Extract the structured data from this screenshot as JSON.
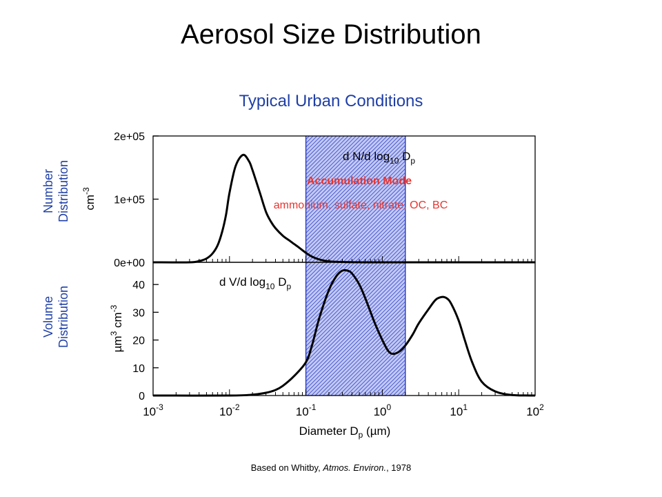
{
  "slide": {
    "title": "Aerosol Size Distribution",
    "subtitle": "Typical Urban Conditions",
    "number_label": [
      "Number",
      "Distribution"
    ],
    "volume_label": [
      "Volume",
      "Distribution"
    ],
    "citation_prefix": "Based on Whitby, ",
    "citation_journal": "Atmos. Environ.",
    "citation_suffix": ",  1978"
  },
  "colors": {
    "accent_blue": "#1f3fa6",
    "band_blue": "#2a3fd0",
    "annotation_red": "#e8332e",
    "curve": "#000000"
  },
  "chart_data": [
    {
      "type": "line",
      "panel": "number",
      "x_scale": "log",
      "xlim": [
        0.001,
        100
      ],
      "ylim": [
        0,
        200000
      ],
      "ylabel": "cm-3",
      "yticks": [
        0,
        100000,
        200000
      ],
      "ytick_labels": [
        "0e+00",
        "1e+05",
        "2e+05"
      ],
      "annotation": "d N/d log10 Dp",
      "shaded_band": {
        "from": 0.1,
        "to": 2,
        "label": "Accumulation Mode",
        "sublabel": "ammonium, sulfate, nitrate, OC, BC"
      },
      "series": [
        {
          "x": [
            0.001,
            0.003,
            0.004,
            0.005,
            0.006,
            0.007,
            0.008,
            0.009,
            0.01,
            0.012,
            0.015,
            0.018,
            0.02,
            0.025,
            0.03,
            0.035,
            0.04,
            0.05,
            0.06,
            0.07,
            0.08,
            0.1,
            0.12,
            0.15,
            0.2,
            0.3,
            0.5,
            1,
            100
          ],
          "y": [
            0,
            0,
            2000,
            6000,
            14000,
            27000,
            48000,
            75000,
            110000,
            152000,
            170000,
            160000,
            146000,
            110000,
            80000,
            64000,
            54000,
            42000,
            35000,
            29000,
            24000,
            15000,
            9000,
            4500,
            1500,
            500,
            100,
            0,
            0
          ]
        }
      ]
    },
    {
      "type": "line",
      "panel": "volume",
      "x_scale": "log",
      "xlim": [
        0.001,
        100
      ],
      "ylim": [
        0,
        48
      ],
      "ylabel": "µm3 cm-3",
      "xlabel": "Diameter Dp (µm)",
      "yticks": [
        0,
        10,
        20,
        30,
        40
      ],
      "xtick_exponents": [
        "-3",
        "-2",
        "-1",
        "0",
        "1",
        "2"
      ],
      "annotation": "d V/d log10 Dp",
      "shaded_band": {
        "from": 0.1,
        "to": 2
      },
      "series": [
        {
          "x": [
            0.001,
            0.01,
            0.02,
            0.03,
            0.04,
            0.05,
            0.07,
            0.1,
            0.12,
            0.15,
            0.2,
            0.25,
            0.3,
            0.35,
            0.4,
            0.5,
            0.6,
            0.8,
            1.0,
            1.2,
            1.4,
            1.7,
            2.0,
            2.5,
            3.0,
            4.0,
            5.0,
            6.0,
            7.0,
            8.0,
            10,
            12,
            15,
            20,
            30,
            50,
            100
          ],
          "y": [
            0,
            0,
            0.3,
            1,
            2,
            3.5,
            7,
            12,
            18,
            28,
            38,
            43,
            45,
            45,
            44,
            40,
            35,
            26,
            20,
            16,
            15,
            16,
            18,
            22,
            26,
            31,
            34.5,
            35.5,
            35,
            33,
            27,
            20,
            12,
            5,
            1.5,
            0.2,
            0
          ]
        }
      ]
    }
  ]
}
